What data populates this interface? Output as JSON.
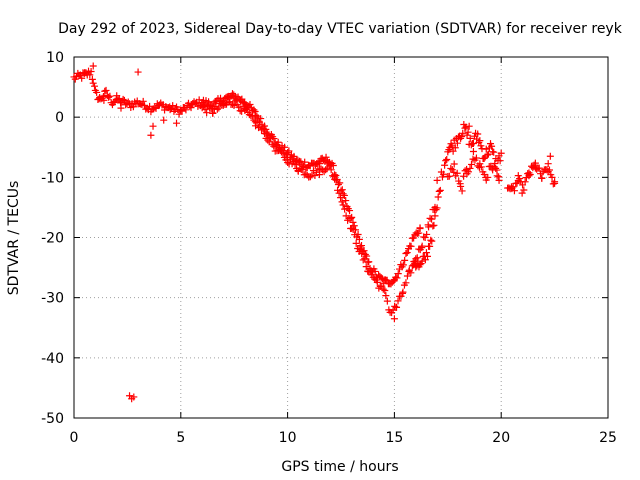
{
  "chart_data": {
    "type": "scatter",
    "title": "Day 292 of 2023, Sidereal Day-to-day VTEC variation (SDTVAR) for receiver reyk",
    "xlabel": "GPS time / hours",
    "ylabel": "SDTVAR / TECUs",
    "xlim": [
      0,
      25
    ],
    "ylim": [
      -50,
      10
    ],
    "xticks": [
      0,
      5,
      10,
      15,
      20,
      25
    ],
    "yticks": [
      -50,
      -40,
      -30,
      -20,
      -10,
      0,
      10
    ],
    "grid": true,
    "marker": "+",
    "color": "#ff0000",
    "series": [
      {
        "name": "SDTVAR",
        "trace_a": [
          [
            0.0,
            6.5
          ],
          [
            0.3,
            6.8
          ],
          [
            0.5,
            7.0
          ],
          [
            0.8,
            7.5
          ],
          [
            0.9,
            6.0
          ],
          [
            1.0,
            4.0
          ],
          [
            1.2,
            3.0
          ],
          [
            1.5,
            4.0
          ],
          [
            1.8,
            2.5
          ],
          [
            2.0,
            3.0
          ],
          [
            2.3,
            2.5
          ],
          [
            2.6,
            2.0
          ],
          [
            3.0,
            2.5
          ],
          [
            3.3,
            2.0
          ],
          [
            3.6,
            1.5
          ],
          [
            4.0,
            2.0
          ],
          [
            4.5,
            1.5
          ],
          [
            5.0,
            1.0
          ],
          [
            5.5,
            2.0
          ],
          [
            6.0,
            2.5
          ],
          [
            6.5,
            2.0
          ],
          [
            7.0,
            3.0
          ],
          [
            7.5,
            3.5
          ],
          [
            8.0,
            2.5
          ],
          [
            8.5,
            0.5
          ],
          [
            9.0,
            -2.0
          ],
          [
            9.5,
            -4.5
          ],
          [
            10.0,
            -6.0
          ],
          [
            10.5,
            -7.5
          ],
          [
            11.0,
            -8.0
          ],
          [
            11.5,
            -7.5
          ],
          [
            11.9,
            -7.0
          ],
          [
            12.2,
            -9.0
          ],
          [
            12.6,
            -13.0
          ],
          [
            13.0,
            -17.0
          ],
          [
            13.4,
            -21.0
          ],
          [
            13.8,
            -24.5
          ],
          [
            14.2,
            -26.5
          ],
          [
            14.6,
            -27.5
          ],
          [
            15.0,
            -27.0
          ],
          [
            15.3,
            -25.0
          ],
          [
            15.6,
            -22.5
          ],
          [
            15.9,
            -20.0
          ],
          [
            16.2,
            -18.5
          ]
        ],
        "trace_b": [
          [
            6.0,
            1.5
          ],
          [
            6.5,
            1.0
          ],
          [
            7.0,
            2.0
          ],
          [
            7.5,
            2.5
          ],
          [
            8.0,
            1.0
          ],
          [
            8.5,
            -1.0
          ],
          [
            9.0,
            -3.0
          ],
          [
            9.5,
            -5.5
          ],
          [
            10.0,
            -7.0
          ],
          [
            10.5,
            -8.5
          ],
          [
            11.0,
            -9.5
          ],
          [
            11.5,
            -9.0
          ],
          [
            11.9,
            -8.0
          ],
          [
            12.2,
            -10.0
          ],
          [
            12.6,
            -14.5
          ],
          [
            13.0,
            -18.5
          ],
          [
            13.4,
            -22.5
          ],
          [
            13.8,
            -25.5
          ],
          [
            14.2,
            -27.5
          ],
          [
            14.6,
            -29.5
          ],
          [
            14.8,
            -32.5
          ],
          [
            15.1,
            -31.5
          ],
          [
            15.4,
            -29.0
          ],
          [
            15.7,
            -26.0
          ],
          [
            16.0,
            -23.5
          ],
          [
            16.3,
            -21.0
          ],
          [
            16.6,
            -18.0
          ],
          [
            16.9,
            -15.0
          ]
        ],
        "trace_c": [
          [
            15.9,
            -24.0
          ],
          [
            16.2,
            -25.0
          ],
          [
            16.5,
            -23.0
          ],
          [
            16.8,
            -19.0
          ],
          [
            17.0,
            -15.0
          ],
          [
            17.2,
            -10.0
          ],
          [
            17.5,
            -5.5
          ],
          [
            17.8,
            -4.5
          ],
          [
            18.0,
            -3.0
          ],
          [
            18.3,
            -2.0
          ],
          [
            18.6,
            -4.5
          ],
          [
            18.9,
            -3.0
          ],
          [
            19.2,
            -6.5
          ],
          [
            19.5,
            -5.0
          ],
          [
            19.8,
            -8.0
          ],
          [
            20.0,
            -6.0
          ]
        ],
        "trace_d": [
          [
            17.5,
            -10.0
          ],
          [
            17.8,
            -8.5
          ],
          [
            18.1,
            -12.0
          ],
          [
            18.4,
            -9.0
          ],
          [
            18.7,
            -6.5
          ],
          [
            19.0,
            -8.0
          ],
          [
            19.3,
            -10.0
          ],
          [
            19.6,
            -8.0
          ],
          [
            19.9,
            -10.5
          ]
        ],
        "trace_e": [
          [
            20.3,
            -11.0
          ],
          [
            20.5,
            -12.5
          ],
          [
            20.8,
            -10.5
          ],
          [
            21.0,
            -12.0
          ],
          [
            21.3,
            -9.5
          ],
          [
            21.6,
            -8.0
          ],
          [
            21.9,
            -10.0
          ],
          [
            22.2,
            -8.5
          ],
          [
            22.5,
            -11.0
          ]
        ],
        "points": [
          [
            0.9,
            8.5
          ],
          [
            3.0,
            7.5
          ],
          [
            1.4,
            2.8
          ],
          [
            2.2,
            1.5
          ],
          [
            3.7,
            -1.5
          ],
          [
            3.6,
            -3.0
          ],
          [
            4.2,
            -0.5
          ],
          [
            4.8,
            -1.0
          ],
          [
            2.6,
            -46.3
          ],
          [
            2.7,
            -46.8
          ],
          [
            2.8,
            -46.5
          ],
          [
            17.0,
            -10.5
          ],
          [
            18.5,
            -1.5
          ],
          [
            22.3,
            -6.5
          ],
          [
            15.0,
            -33.5
          ]
        ]
      }
    ]
  }
}
